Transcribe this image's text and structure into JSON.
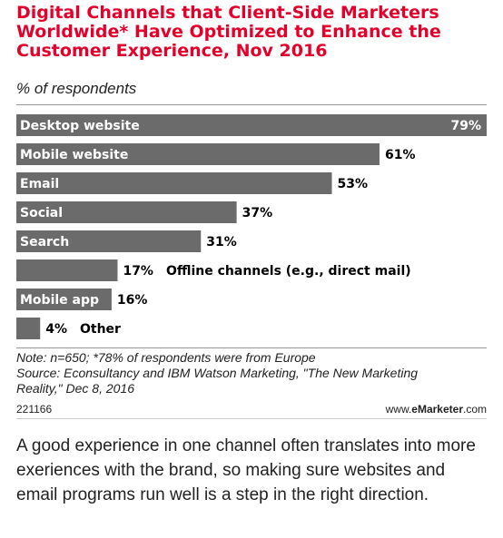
{
  "chart_data": {
    "type": "bar",
    "orientation": "horizontal",
    "title": "Digital Channels that Client-Side Marketers Worldwide* Have Optimized to Enhance the Customer Experience, Nov 2016",
    "subtitle": "% of respondents",
    "categories": [
      "Desktop website",
      "Mobile website",
      "Email",
      "Social",
      "Search",
      "Offline channels (e.g., direct mail)",
      "Mobile app",
      "Other"
    ],
    "values": [
      79,
      61,
      53,
      37,
      31,
      17,
      16,
      4
    ],
    "value_labels": [
      "79%",
      "61%",
      "53%",
      "37%",
      "31%",
      "17%",
      "16%",
      "4%"
    ],
    "xlim": [
      0,
      79
    ],
    "grid": false,
    "colors": {
      "bar": "#6b6b6b",
      "title": "#e4002b"
    }
  },
  "notes": {
    "line1": "Note: n=650; *78% of respondents were from Europe",
    "line2": "Source: Econsultancy and IBM Watson Marketing, \"The New Marketing",
    "line3": "Reality,\" Dec 8, 2016"
  },
  "chart_id": "221166",
  "brand": {
    "prefix": "www.",
    "name": "eMarketer",
    "suffix": ".com"
  },
  "caption": "A good experience in one channel often translates into more exeriences with the brand, so making sure websites and email programs run well is a step in the right direction."
}
